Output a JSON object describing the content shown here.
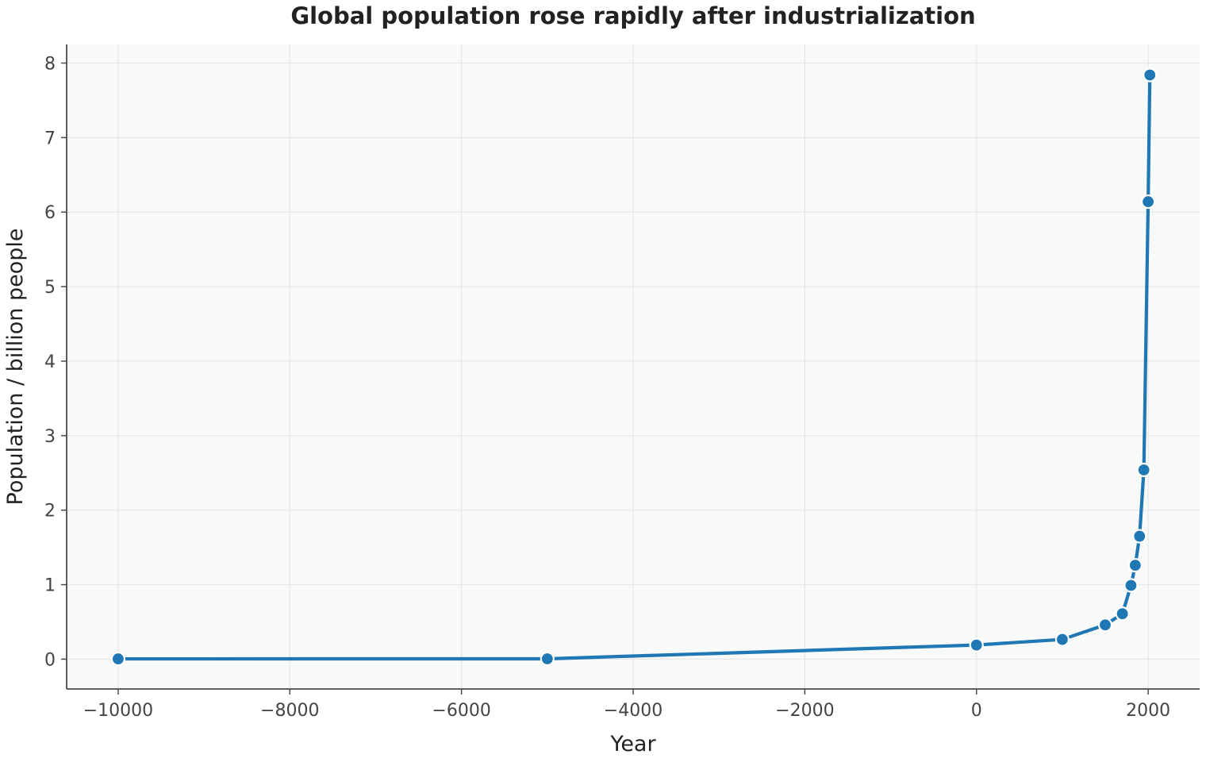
{
  "chart_data": {
    "type": "line",
    "title": "Global population rose rapidly after industrialization",
    "xlabel": "Year",
    "ylabel": "Population / billion people",
    "xlim": [
      -10600,
      2600
    ],
    "ylim": [
      -0.4,
      8.25
    ],
    "xticks": [
      -10000,
      -8000,
      -6000,
      -4000,
      -2000,
      0,
      2000
    ],
    "xtick_labels": [
      "−10000",
      "−8000",
      "−6000",
      "−4000",
      "−2000",
      "0",
      "2000"
    ],
    "yticks": [
      0,
      1,
      2,
      3,
      4,
      5,
      6,
      7,
      8
    ],
    "ytick_labels": [
      "0",
      "1",
      "2",
      "3",
      "4",
      "5",
      "6",
      "7",
      "8"
    ],
    "grid": true,
    "legend": "none",
    "series": [
      {
        "color": "#1f77b4",
        "marker": "circle",
        "x": [
          -10000,
          -5000,
          0,
          1000,
          1500,
          1700,
          1800,
          1850,
          1900,
          1950,
          2000,
          2020
        ],
        "y": [
          0.004,
          0.005,
          0.19,
          0.265,
          0.46,
          0.61,
          0.99,
          1.26,
          1.65,
          2.54,
          6.14,
          7.84
        ]
      }
    ]
  },
  "colors": {
    "plot_background": "#f8f9f9",
    "grid": "#e6e6e6",
    "axis": "#4a4a4a",
    "line": "#1f77b4",
    "marker_edge": "#ffffff"
  }
}
